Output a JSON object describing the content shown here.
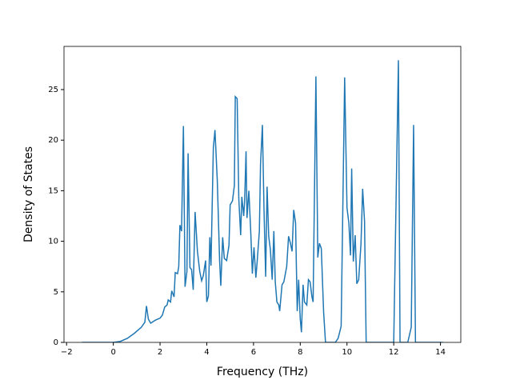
{
  "chart_data": {
    "type": "line",
    "x_label": "Frequency (THz)",
    "y_label": "Density of States",
    "xlim": [
      -2.11,
      14.87
    ],
    "ylim": [
      0,
      29.27
    ],
    "xticks": [
      {
        "value": -2,
        "label": "−2"
      },
      0,
      2,
      4,
      6,
      8,
      10,
      12,
      14
    ],
    "yticks": [
      0,
      5,
      10,
      15,
      20,
      25
    ],
    "grid": false,
    "series": [
      {
        "color": "#1f77b4",
        "x": [
          -1.34,
          -0.5,
          0,
          0.3,
          0.6,
          0.9,
          1.2,
          1.35,
          1.42,
          1.5,
          1.6,
          1.8,
          2.0,
          2.1,
          2.2,
          2.3,
          2.35,
          2.45,
          2.5,
          2.6,
          2.65,
          2.75,
          2.8,
          2.85,
          2.92,
          3.0,
          3.07,
          3.15,
          3.2,
          3.28,
          3.35,
          3.42,
          3.5,
          3.6,
          3.7,
          3.78,
          3.85,
          3.95,
          4.0,
          4.07,
          4.13,
          4.18,
          4.28,
          4.35,
          4.45,
          4.55,
          4.6,
          4.68,
          4.75,
          4.85,
          4.95,
          5.0,
          5.1,
          5.18,
          5.22,
          5.3,
          5.37,
          5.45,
          5.5,
          5.58,
          5.62,
          5.68,
          5.72,
          5.8,
          5.88,
          5.95,
          6.02,
          6.1,
          6.15,
          6.25,
          6.3,
          6.38,
          6.45,
          6.52,
          6.58,
          6.65,
          6.72,
          6.8,
          6.87,
          6.93,
          7.0,
          7.08,
          7.12,
          7.22,
          7.3,
          7.42,
          7.5,
          7.58,
          7.65,
          7.72,
          7.8,
          7.87,
          7.93,
          8.0,
          8.05,
          8.12,
          8.18,
          8.28,
          8.35,
          8.42,
          8.5,
          8.55,
          8.67,
          8.75,
          8.82,
          8.9,
          9.0,
          9.08,
          9.5,
          9.62,
          9.75,
          9.9,
          10.0,
          10.08,
          10.15,
          10.2,
          10.27,
          10.35,
          10.42,
          10.5,
          10.6,
          10.67,
          10.75,
          10.82,
          11.0,
          12.0,
          12.1,
          12.2,
          12.27,
          12.6,
          12.75,
          12.85,
          12.93,
          14.1
        ],
        "values": [
          0,
          0,
          0,
          0.1,
          0.4,
          0.9,
          1.5,
          2.0,
          3.6,
          2.3,
          1.9,
          2.2,
          2.4,
          2.7,
          3.5,
          3.7,
          4.2,
          4.0,
          5.1,
          4.5,
          6.9,
          6.8,
          7.5,
          11.6,
          11.0,
          21.4,
          5.5,
          7.0,
          18.7,
          7.4,
          7.2,
          5.2,
          12.9,
          9.0,
          7.0,
          6.1,
          6.6,
          8.1,
          4.0,
          4.6,
          10.4,
          7.6,
          19.2,
          21.0,
          16.0,
          8.0,
          5.6,
          10.4,
          8.3,
          8.1,
          9.6,
          13.6,
          14.0,
          15.5,
          24.3,
          24.1,
          14.2,
          10.6,
          14.4,
          12.5,
          14.0,
          18.9,
          12.3,
          15.0,
          11.0,
          6.8,
          9.4,
          6.4,
          7.8,
          11.0,
          17.6,
          21.5,
          13.0,
          6.5,
          15.4,
          10.5,
          9.2,
          6.2,
          11.0,
          6.0,
          4.0,
          3.7,
          3.1,
          5.7,
          6.0,
          7.5,
          10.5,
          9.8,
          9.0,
          13.1,
          11.8,
          3.1,
          6.2,
          2.3,
          1.0,
          5.7,
          4.0,
          3.7,
          6.2,
          6.0,
          4.5,
          4.0,
          26.3,
          8.4,
          9.8,
          9.3,
          3.0,
          0,
          0,
          0.4,
          1.6,
          26.2,
          13.3,
          11.8,
          8.6,
          17.2,
          8.0,
          10.6,
          5.8,
          6.2,
          9.8,
          15.2,
          12.0,
          0,
          0,
          0,
          14.0,
          27.9,
          0,
          0,
          1.5,
          21.5,
          0,
          0
        ]
      }
    ]
  }
}
